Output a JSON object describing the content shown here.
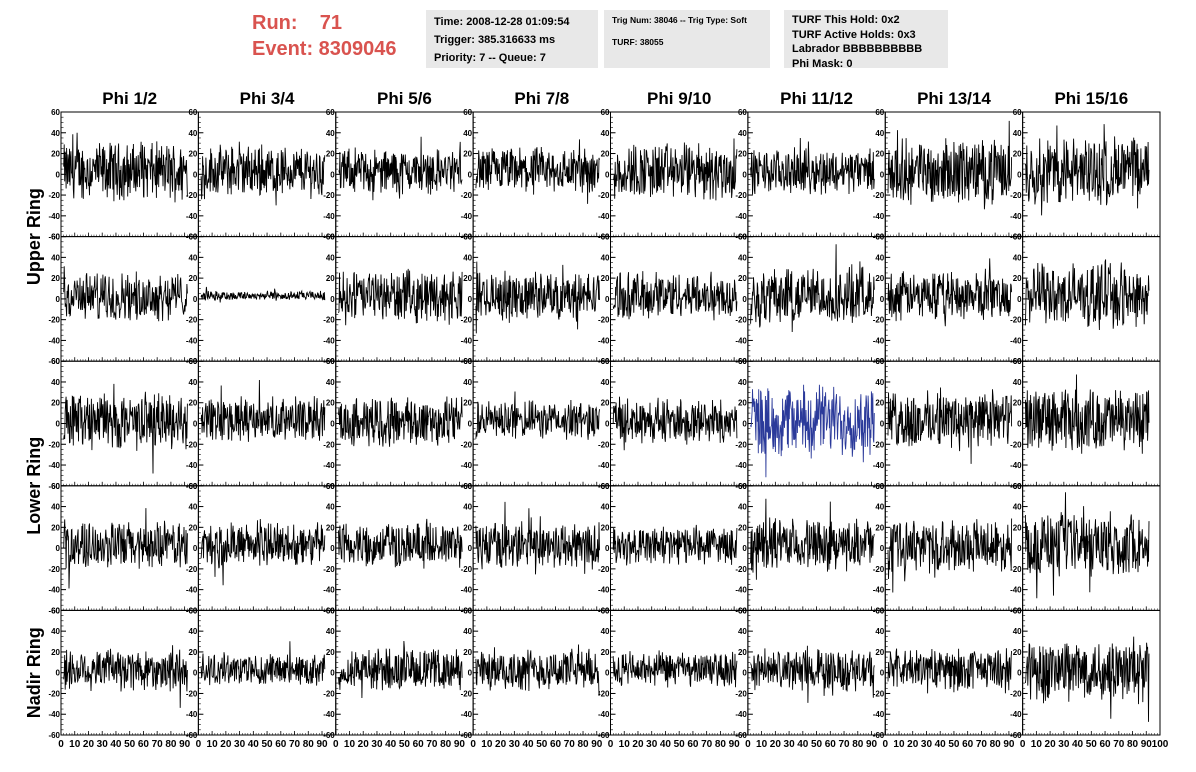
{
  "header": {
    "run_label": "Run:    71",
    "event_label": "Event: 8309046",
    "run_color": "#d9534f",
    "time_box": {
      "line1": "Time: 2008-12-28 01:09:54",
      "line2": "Trigger: 385.316633 ms",
      "line3": "Priority: 7 -- Queue: 7"
    },
    "trig_box": {
      "line1": "Trig Num: 38046 -- Trig Type: Soft",
      "line2": "TURF: 38055"
    },
    "turf_box": {
      "line1": "TURF This Hold: 0x2",
      "line2": "TURF Active Holds: 0x3",
      "line3": "Labrador BBBBBBBBBB",
      "line4": "Phi Mask: 0"
    }
  },
  "chart_data": {
    "type": "line",
    "layout": "grid of waveform panels, 8 columns x 5 rows",
    "columns": [
      "Phi 1/2",
      "Phi 3/4",
      "Phi 5/6",
      "Phi 7/8",
      "Phi 9/10",
      "Phi 11/12",
      "Phi 13/14",
      "Phi 15/16"
    ],
    "ring_labels": [
      "Upper Ring",
      "Lower Ring",
      "Nadir Ring"
    ],
    "ylim": [
      -60,
      60
    ],
    "yticks": [
      -60,
      -40,
      -20,
      0,
      20,
      40,
      60
    ],
    "xlim": [
      0,
      100
    ],
    "xticks": [
      0,
      10,
      20,
      30,
      40,
      50,
      60,
      70,
      80,
      90,
      100
    ],
    "trace_color": "#000000",
    "highlight_color": "#2b3a9a",
    "panels_amplitude": [
      [
        18,
        16,
        14,
        15,
        18,
        14,
        20,
        22
      ],
      [
        15,
        3,
        16,
        15,
        15,
        18,
        15,
        20
      ],
      [
        18,
        14,
        16,
        12,
        14,
        22,
        18,
        20
      ],
      [
        15,
        14,
        14,
        15,
        12,
        16,
        16,
        20
      ],
      [
        14,
        10,
        13,
        13,
        11,
        13,
        13,
        20
      ]
    ],
    "highlight_panel": [
      2,
      5
    ]
  }
}
